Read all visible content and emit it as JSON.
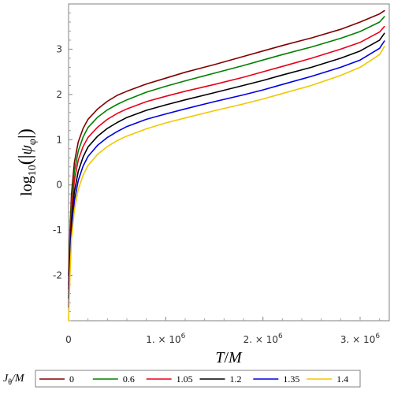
{
  "chart_data": {
    "type": "line",
    "xlabel": {
      "base": "T",
      "slash": "/",
      "unit": "M"
    },
    "ylabel": {
      "func": "log",
      "sub": "10",
      "arg": "ψ",
      "argsub": "φ"
    },
    "xlim": [
      0,
      3300000
    ],
    "ylim": [
      -3,
      4
    ],
    "grid": false,
    "xticks": [
      {
        "value": 0,
        "label": "0"
      },
      {
        "value": 1000000,
        "label": "1. × 10",
        "exp": "6"
      },
      {
        "value": 2000000,
        "label": "2. × 10",
        "exp": "6"
      },
      {
        "value": 3000000,
        "label": "3. × 10",
        "exp": "6"
      }
    ],
    "yticks": [
      {
        "value": -2,
        "label": "-2"
      },
      {
        "value": -1,
        "label": "-1"
      },
      {
        "value": 0,
        "label": "0"
      },
      {
        "value": 1,
        "label": "1"
      },
      {
        "value": 2,
        "label": "2"
      },
      {
        "value": 3,
        "label": "3"
      }
    ],
    "legend": {
      "placement": "bottom",
      "title": {
        "base": "J",
        "sub": "θ",
        "tail": "/M"
      }
    },
    "series": [
      {
        "name": "0",
        "color": "#800000",
        "x": [
          0,
          15000,
          30000,
          60000,
          100000,
          150000,
          200000,
          300000,
          400000,
          500000,
          600000,
          800000,
          1000000,
          1200000,
          1500000,
          1800000,
          2000000,
          2200000,
          2500000,
          2800000,
          3000000,
          3200000,
          3250000
        ],
        "y": [
          -2.0,
          -1.0,
          -0.2,
          0.5,
          0.95,
          1.25,
          1.45,
          1.68,
          1.85,
          1.98,
          2.07,
          2.23,
          2.36,
          2.49,
          2.66,
          2.84,
          2.96,
          3.08,
          3.25,
          3.44,
          3.6,
          3.78,
          3.85
        ]
      },
      {
        "name": "0.6",
        "color": "#008000",
        "x": [
          0,
          15000,
          30000,
          60000,
          100000,
          150000,
          200000,
          300000,
          400000,
          500000,
          600000,
          800000,
          1000000,
          1200000,
          1500000,
          1800000,
          2000000,
          2200000,
          2500000,
          2800000,
          3000000,
          3200000,
          3250000
        ],
        "y": [
          -2.2,
          -1.2,
          -0.4,
          0.3,
          0.75,
          1.06,
          1.27,
          1.5,
          1.66,
          1.78,
          1.88,
          2.05,
          2.18,
          2.3,
          2.47,
          2.64,
          2.76,
          2.88,
          3.05,
          3.24,
          3.39,
          3.6,
          3.72
        ]
      },
      {
        "name": "1.05",
        "color": "#e8001a",
        "x": [
          0,
          15000,
          30000,
          60000,
          100000,
          150000,
          200000,
          300000,
          400000,
          500000,
          600000,
          800000,
          1000000,
          1200000,
          1500000,
          1800000,
          2000000,
          2200000,
          2500000,
          2800000,
          3000000,
          3200000,
          3250000
        ],
        "y": [
          -2.3,
          -1.4,
          -0.6,
          0.1,
          0.55,
          0.85,
          1.05,
          1.28,
          1.45,
          1.58,
          1.68,
          1.84,
          1.96,
          2.07,
          2.22,
          2.38,
          2.5,
          2.62,
          2.8,
          3.0,
          3.15,
          3.38,
          3.5
        ]
      },
      {
        "name": "1.2",
        "color": "#000000",
        "x": [
          0,
          15000,
          30000,
          60000,
          100000,
          150000,
          200000,
          300000,
          400000,
          500000,
          600000,
          800000,
          1000000,
          1200000,
          1500000,
          1800000,
          2000000,
          2200000,
          2500000,
          2800000,
          3000000,
          3200000,
          3250000
        ],
        "y": [
          -2.5,
          -1.6,
          -0.8,
          -0.15,
          0.3,
          0.62,
          0.84,
          1.08,
          1.25,
          1.38,
          1.49,
          1.65,
          1.77,
          1.88,
          2.04,
          2.2,
          2.31,
          2.43,
          2.6,
          2.8,
          2.96,
          3.2,
          3.35
        ]
      },
      {
        "name": "1.35",
        "color": "#0000e0",
        "x": [
          0,
          15000,
          30000,
          60000,
          100000,
          150000,
          200000,
          300000,
          400000,
          500000,
          600000,
          800000,
          1000000,
          1200000,
          1500000,
          1800000,
          2000000,
          2200000,
          2500000,
          2800000,
          3000000,
          3200000,
          3250000
        ],
        "y": [
          -2.7,
          -1.8,
          -1.0,
          -0.35,
          0.1,
          0.42,
          0.63,
          0.88,
          1.05,
          1.18,
          1.29,
          1.45,
          1.57,
          1.68,
          1.84,
          1.99,
          2.1,
          2.22,
          2.4,
          2.6,
          2.76,
          3.02,
          3.18
        ]
      },
      {
        "name": "1.4",
        "color": "#f0c800",
        "x": [
          0,
          15000,
          30000,
          60000,
          100000,
          150000,
          200000,
          300000,
          400000,
          500000,
          600000,
          800000,
          1000000,
          1200000,
          1500000,
          1800000,
          2000000,
          2200000,
          2500000,
          2800000,
          3000000,
          3200000,
          3250000
        ],
        "y": [
          -3.0,
          -2.0,
          -1.2,
          -0.55,
          -0.1,
          0.22,
          0.43,
          0.68,
          0.85,
          0.98,
          1.08,
          1.24,
          1.37,
          1.48,
          1.64,
          1.79,
          1.9,
          2.02,
          2.2,
          2.42,
          2.6,
          2.88,
          3.06
        ]
      }
    ]
  }
}
